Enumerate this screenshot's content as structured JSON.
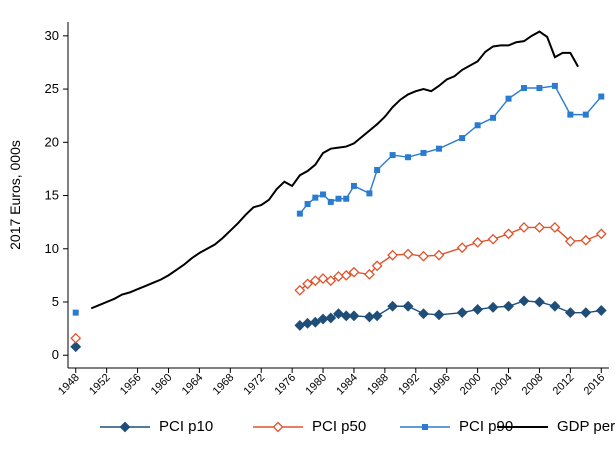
{
  "chart_data": {
    "type": "line",
    "y_label": "2017 Euros, 000s",
    "xlim": [
      1947,
      2017
    ],
    "ylim": [
      -1.2,
      31.3
    ],
    "xticks": [
      1948,
      1952,
      1956,
      1960,
      1964,
      1968,
      1972,
      1976,
      1980,
      1984,
      1988,
      1992,
      1996,
      2000,
      2004,
      2008,
      2012,
      2016
    ],
    "yticks": [
      0,
      5,
      10,
      15,
      20,
      25,
      30
    ],
    "grid": false,
    "legend": "bottom",
    "series": [
      {
        "name": "PCI p10",
        "color": "#1f4e79",
        "marker": "diamond",
        "x": [
          1948,
          1949,
          1977,
          1978,
          1979,
          1980,
          1981,
          1982,
          1983,
          1984,
          1986,
          1987,
          1989,
          1991,
          1993,
          1995,
          1998,
          2000,
          2002,
          2004,
          2006,
          2008,
          2010,
          2012,
          2014,
          2016
        ],
        "values": [
          0.8,
          null,
          2.8,
          3.0,
          3.1,
          3.4,
          3.5,
          3.9,
          3.7,
          3.7,
          3.6,
          3.7,
          4.6,
          4.6,
          3.9,
          3.8,
          4.0,
          4.3,
          4.5,
          4.6,
          5.1,
          5.0,
          4.6,
          4.0,
          4.0,
          4.2
        ]
      },
      {
        "name": "PCI p50",
        "color": "#e0522a",
        "marker": "diamond-hollow",
        "x": [
          1948,
          1949,
          1977,
          1978,
          1979,
          1980,
          1981,
          1982,
          1983,
          1984,
          1986,
          1987,
          1989,
          1991,
          1993,
          1995,
          1998,
          2000,
          2002,
          2004,
          2006,
          2008,
          2010,
          2012,
          2014,
          2016
        ],
        "values": [
          1.6,
          null,
          6.1,
          6.7,
          7.0,
          7.2,
          7.0,
          7.4,
          7.5,
          7.8,
          7.6,
          8.4,
          9.4,
          9.5,
          9.3,
          9.4,
          10.1,
          10.6,
          10.9,
          11.4,
          12.0,
          12.0,
          12.0,
          10.7,
          10.8,
          11.4
        ]
      },
      {
        "name": "PCI p90",
        "color": "#2b7bd0",
        "marker": "square",
        "x": [
          1948,
          1949,
          1977,
          1978,
          1979,
          1980,
          1981,
          1982,
          1983,
          1984,
          1986,
          1987,
          1989,
          1991,
          1993,
          1995,
          1998,
          2000,
          2002,
          2004,
          2006,
          2008,
          2010,
          2012,
          2014,
          2016
        ],
        "values": [
          4.0,
          null,
          13.3,
          14.2,
          14.8,
          15.1,
          14.4,
          14.7,
          14.7,
          15.9,
          15.2,
          17.4,
          18.8,
          18.6,
          19.0,
          19.4,
          20.4,
          21.6,
          22.3,
          24.1,
          25.1,
          25.1,
          25.3,
          22.6,
          22.6,
          24.3
        ]
      },
      {
        "name": "GDP per capita",
        "color": "#000000",
        "marker": "none",
        "x": [
          1950,
          1951,
          1952,
          1953,
          1954,
          1955,
          1956,
          1957,
          1958,
          1959,
          1960,
          1961,
          1962,
          1963,
          1964,
          1965,
          1966,
          1967,
          1968,
          1969,
          1970,
          1971,
          1972,
          1973,
          1974,
          1975,
          1976,
          1977,
          1978,
          1979,
          1980,
          1981,
          1982,
          1983,
          1984,
          1985,
          1986,
          1987,
          1988,
          1989,
          1990,
          1991,
          1992,
          1993,
          1994,
          1995,
          1996,
          1997,
          1998,
          1999,
          2000,
          2001,
          2002,
          2003,
          2004,
          2005,
          2006,
          2007,
          2008,
          2009,
          2010,
          2011,
          2012,
          2013
        ],
        "values": [
          4.4,
          4.7,
          5.0,
          5.3,
          5.7,
          5.9,
          6.2,
          6.5,
          6.8,
          7.1,
          7.5,
          8.0,
          8.5,
          9.1,
          9.6,
          10.0,
          10.4,
          11.0,
          11.7,
          12.4,
          13.2,
          13.9,
          14.1,
          14.6,
          15.6,
          16.3,
          15.9,
          16.9,
          17.3,
          17.9,
          19.0,
          19.4,
          19.5,
          19.6,
          19.9,
          20.5,
          21.1,
          21.7,
          22.4,
          23.3,
          24.0,
          24.5,
          24.8,
          25.0,
          24.8,
          25.3,
          25.9,
          26.2,
          26.8,
          27.2,
          27.6,
          28.5,
          29.0,
          29.1,
          29.1,
          29.4,
          29.5,
          30.0,
          30.4,
          29.9,
          28.0,
          28.4,
          28.4,
          27.1
        ]
      }
    ]
  }
}
